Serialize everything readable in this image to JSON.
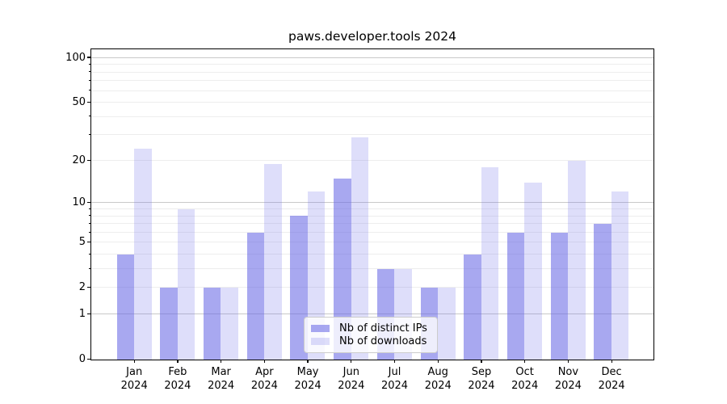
{
  "chart_data": {
    "type": "bar",
    "title": "paws.developer.tools 2024",
    "categories": [
      "Jan",
      "Feb",
      "Mar",
      "Apr",
      "May",
      "Jun",
      "Jul",
      "Aug",
      "Sep",
      "Oct",
      "Nov",
      "Dec"
    ],
    "x_tick_year_line": "2024",
    "series": [
      {
        "name": "Nb of distinct IPs",
        "color": "rgba(105,105,230,0.58)",
        "values": [
          4,
          2,
          2,
          6,
          8,
          15,
          3,
          2,
          4,
          6,
          6,
          7
        ]
      },
      {
        "name": "Nb of downloads",
        "color": "rgba(105,105,230,0.22)",
        "values": [
          24,
          9,
          2,
          19,
          12,
          29,
          3,
          2,
          18,
          14,
          20,
          12
        ]
      }
    ],
    "yticks": [
      0,
      1,
      2,
      5,
      10,
      20,
      50,
      100
    ],
    "ylim": [
      0,
      113
    ],
    "yscale": "symlog ln(1+v)",
    "xlabel": "",
    "ylabel": "",
    "grid": true,
    "legend_position": "lower center"
  },
  "colors": {
    "major_gridline": "#c9c9c9",
    "minor_gridline": "#ededed",
    "axis": "#000000",
    "text": "#000000",
    "legend_border": "#cccccc",
    "legend_bg": "rgba(255,255,255,0.8)",
    "background": "#ffffff"
  }
}
